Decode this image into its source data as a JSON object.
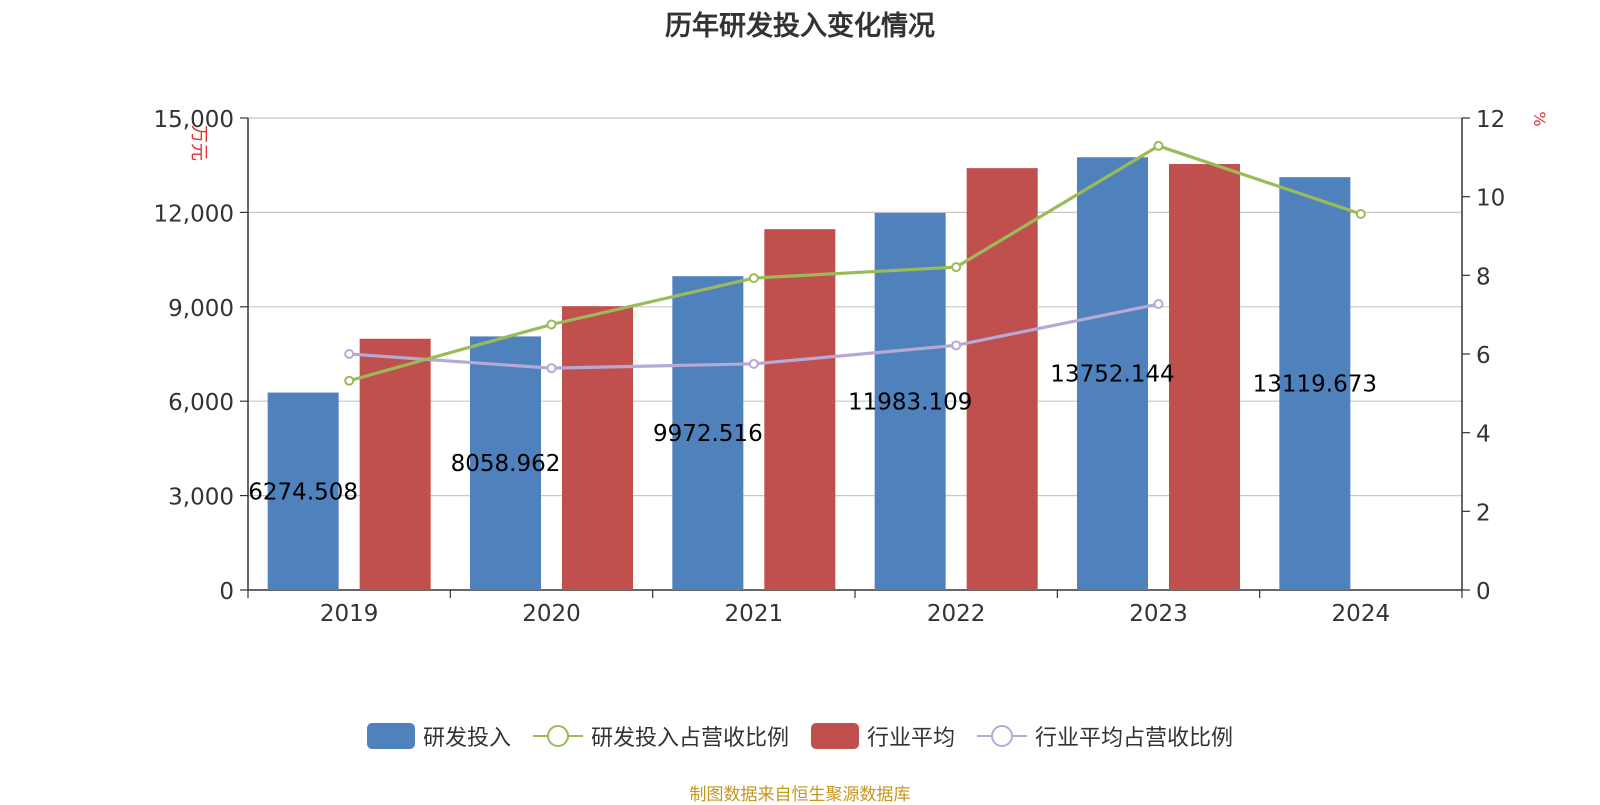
{
  "title": "历年研发投入变化情况",
  "source": "制图数据来自恒生聚源数据库",
  "colors": {
    "rd_bar": "#4f81bd",
    "industry_bar": "#c0504d",
    "rd_ratio_line": "#9bbb59",
    "industry_ratio_line": "#b7a9d6",
    "axis_unit": "#e03030",
    "grid": "#c8c8c8",
    "source_text": "#c8951e"
  },
  "chart_data": {
    "type": "bar",
    "title": "历年研发投入变化情况",
    "categories": [
      "2019",
      "2020",
      "2021",
      "2022",
      "2023",
      "2024"
    ],
    "y_left": {
      "label": "万元",
      "range": [
        0,
        15000
      ],
      "ticks": [
        "0",
        "3,000",
        "6,000",
        "9,000",
        "12,000",
        "15,000"
      ]
    },
    "y_right": {
      "label": "%",
      "range": [
        0,
        12
      ],
      "ticks": [
        "0",
        "2",
        "4",
        "6",
        "8",
        "10",
        "12"
      ]
    },
    "grid": true,
    "legend_position": "bottom",
    "series": [
      {
        "name": "研发投入",
        "type": "bar",
        "axis": "left",
        "values": [
          6274.508,
          8058.962,
          9972.516,
          11983.109,
          13752.144,
          13119.673
        ],
        "labels": [
          "6274.508",
          "8058.962",
          "9972.516",
          "11983.109",
          "13752.144",
          "13119.673"
        ]
      },
      {
        "name": "研发投入占营收比例",
        "type": "line",
        "axis": "right",
        "values": [
          5.32,
          6.75,
          7.93,
          8.21,
          11.29,
          9.56
        ]
      },
      {
        "name": "行业平均",
        "type": "bar",
        "axis": "left",
        "values": [
          7985,
          9019,
          11468,
          13407,
          13537,
          null
        ]
      },
      {
        "name": "行业平均占营收比例",
        "type": "line",
        "axis": "right",
        "values": [
          6.0,
          5.64,
          5.75,
          6.22,
          7.27,
          null
        ]
      }
    ]
  }
}
